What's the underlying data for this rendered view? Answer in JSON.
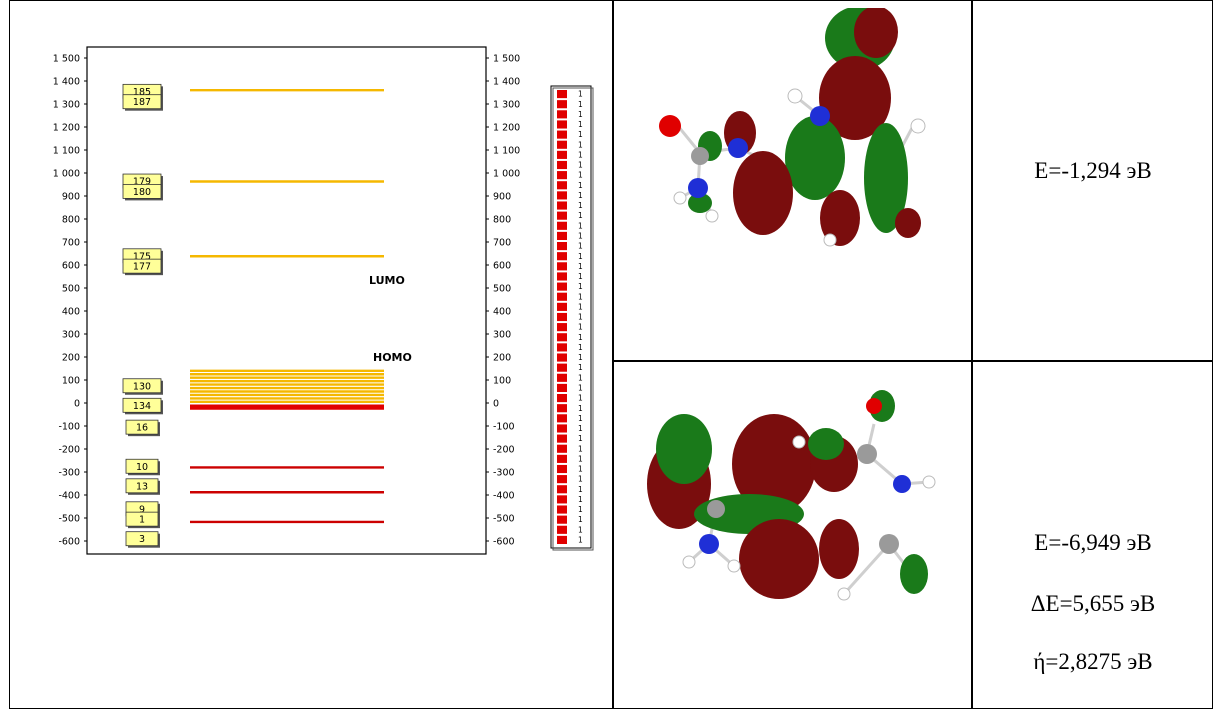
{
  "diagram": {
    "axis_ticks": [
      "1 500",
      "1 400",
      "1 300",
      "1 200",
      "1 100",
      "1 000",
      "900",
      "800",
      "700",
      "600",
      "500",
      "400",
      "300",
      "200",
      "100",
      "0",
      "-100",
      "-200",
      "-300",
      "-400",
      "-500",
      "-600"
    ],
    "axis_ticks_values": [
      1500,
      1400,
      1300,
      1200,
      1100,
      1000,
      900,
      800,
      700,
      600,
      500,
      400,
      300,
      200,
      100,
      0,
      -100,
      -200,
      -300,
      -400,
      -500,
      -600
    ],
    "orbital_tags": [
      {
        "label": "185",
        "value": 1355
      },
      {
        "label": "187",
        "value": 1310
      },
      {
        "label": "179",
        "value": 965
      },
      {
        "label": "180",
        "value": 920
      },
      {
        "label": "175",
        "value": 640
      },
      {
        "label": "177",
        "value": 595
      },
      {
        "label": "130",
        "value": 75
      },
      {
        "label": "134",
        "value": -10
      },
      {
        "label": "16",
        "value": -105
      },
      {
        "label": "10",
        "value": -275
      },
      {
        "label": "13",
        "value": -360
      },
      {
        "label": "9",
        "value": -460
      },
      {
        "label": "1",
        "value": -505
      },
      {
        "label": "3",
        "value": -590
      }
    ],
    "levels": [
      {
        "value": 1360,
        "color": "#f5b800"
      },
      {
        "value": 963,
        "color": "#f5b800"
      },
      {
        "value": 638,
        "color": "#f5b800"
      },
      {
        "value": 140,
        "color": "#f5b800"
      },
      {
        "value": 125,
        "color": "#f5b800"
      },
      {
        "value": 110,
        "color": "#f5b800"
      },
      {
        "value": 95,
        "color": "#f5b800"
      },
      {
        "value": 80,
        "color": "#f5b800"
      },
      {
        "value": 65,
        "color": "#f5b800"
      },
      {
        "value": 50,
        "color": "#f5b800"
      },
      {
        "value": 35,
        "color": "#f5b800"
      },
      {
        "value": 20,
        "color": "#f5b800"
      },
      {
        "value": 5,
        "color": "#f5b800"
      },
      {
        "value": -12,
        "color": "#e00000"
      },
      {
        "value": -18,
        "color": "#e00000"
      },
      {
        "value": -24,
        "color": "#e00000"
      },
      {
        "value": -280,
        "color": "#cc0000"
      },
      {
        "value": -388,
        "color": "#cc0000"
      },
      {
        "value": -517,
        "color": "#cc0000"
      }
    ],
    "lumo_label": "LUMO",
    "homo_label": "HOMO",
    "occupancy_label": "1",
    "occupancy_count": 45
  },
  "lumo_energy": "E=-1,294 эВ",
  "homo_energy": "E=-6,949 эВ",
  "gap": "ΔE=5,655 эВ",
  "hardness": "ή=2,8275 эВ",
  "colors": {
    "virtual": "#f5b800",
    "occupied": "#e00000",
    "lobe_green": "#1a7a1a",
    "lobe_red": "#7a0d0d",
    "nitrogen": "#1f2fd6",
    "oxygen": "#e00000",
    "carbon": "#9a9a9a",
    "hydrogen": "#ffffff"
  }
}
